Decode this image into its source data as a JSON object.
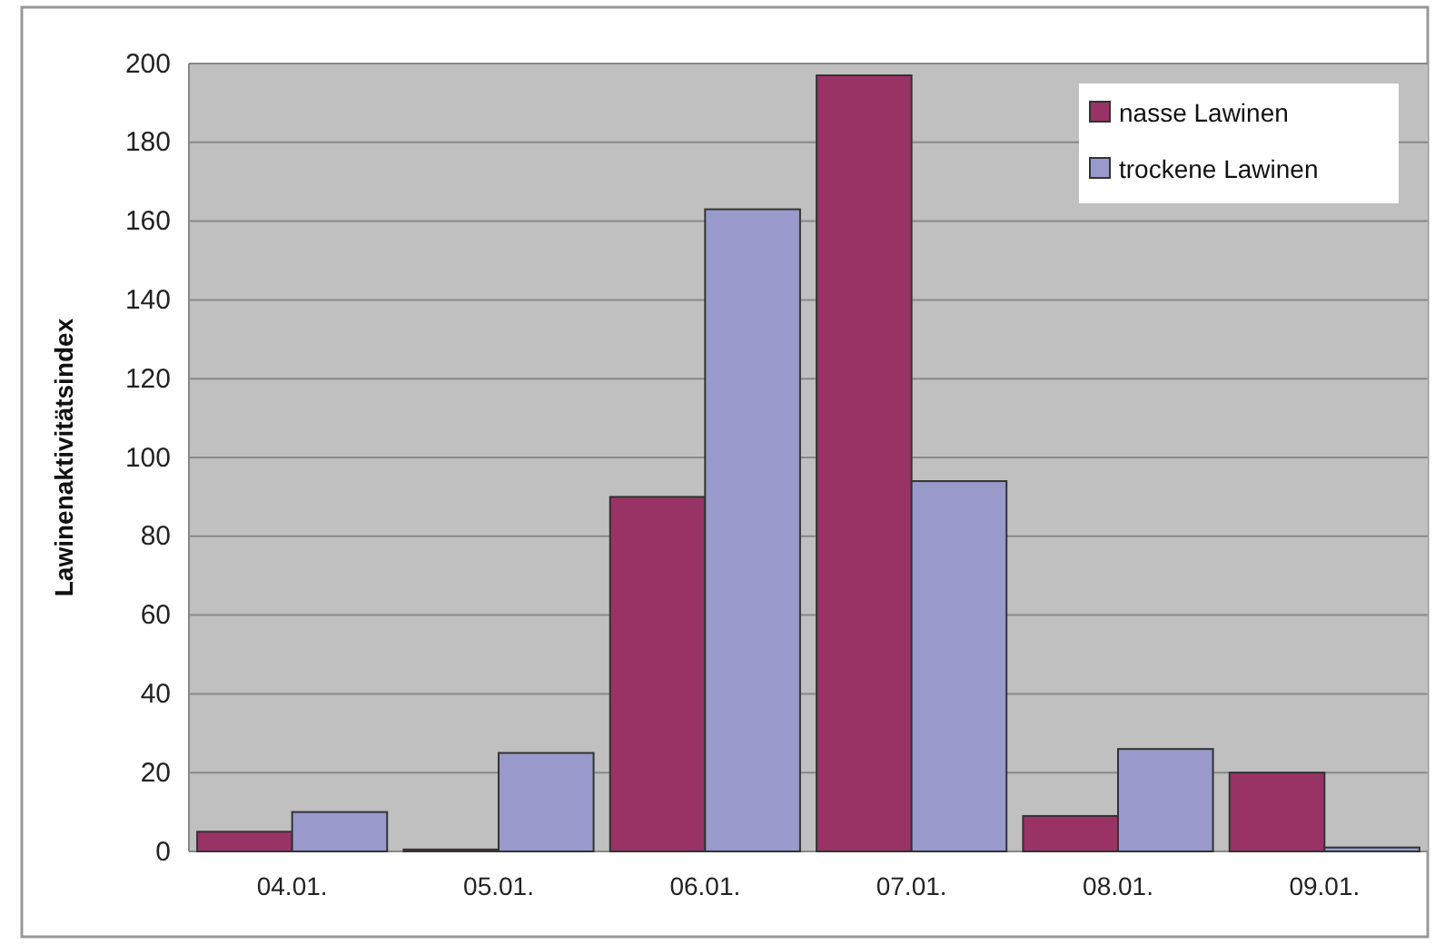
{
  "chart_data": {
    "type": "bar",
    "ylabel": "Lawinenaktivitätsindex",
    "categories": [
      "04.01.",
      "05.01.",
      "06.01.",
      "07.01.",
      "08.01.",
      "09.01."
    ],
    "series": [
      {
        "name": "nasse Lawinen",
        "color": "#993366",
        "values": [
          5,
          0.5,
          90,
          197,
          9,
          20
        ]
      },
      {
        "name": "trockene Lawinen",
        "color": "#9999cc",
        "values": [
          10,
          25,
          163,
          94,
          26,
          1
        ]
      }
    ],
    "ylim": [
      0,
      200
    ],
    "yticks": [
      0,
      20,
      40,
      60,
      80,
      100,
      120,
      140,
      160,
      180,
      200
    ],
    "grid": "y",
    "legend": "top right"
  }
}
